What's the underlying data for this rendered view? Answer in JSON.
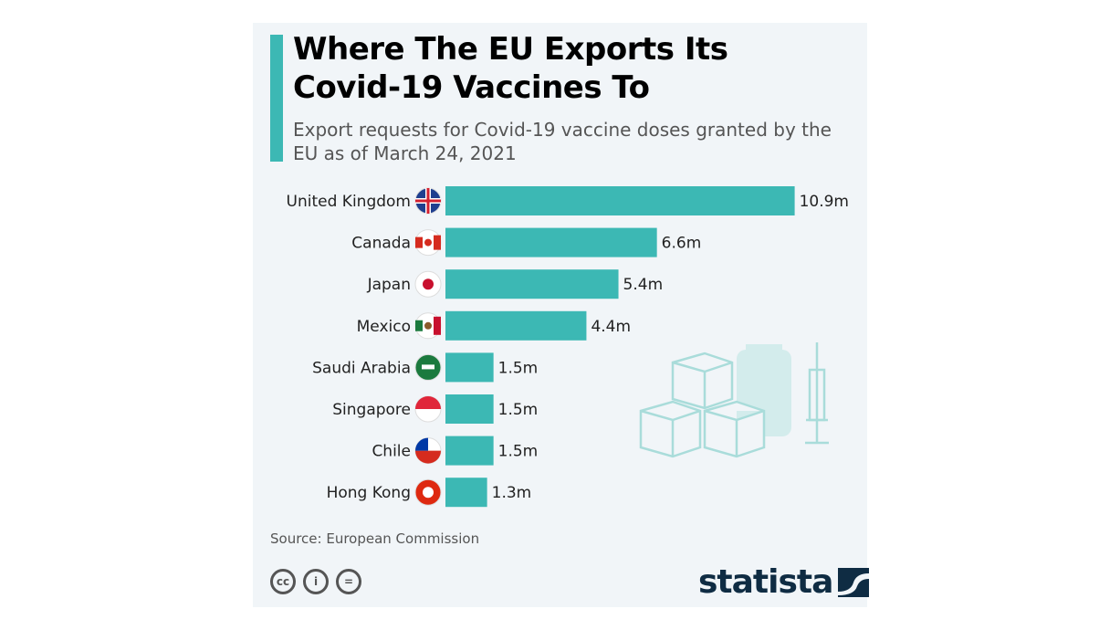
{
  "title": "Where The EU Exports Its Covid-19 Vaccines To",
  "subtitle": "Export requests for Covid-19 vaccine doses granted by the EU as of March 24, 2021",
  "source": "Source: European Commission",
  "brand": "statista",
  "license_icons": [
    "cc-icon",
    "attribution-icon",
    "no-derivatives-icon"
  ],
  "colors": {
    "bar": "#3cb8b4",
    "background": "#f1f5f8"
  },
  "chart_data": {
    "type": "bar",
    "orientation": "horizontal",
    "title": "Where The EU Exports Its Covid-19 Vaccines To",
    "unit": "million doses",
    "categories": [
      "United Kingdom",
      "Canada",
      "Japan",
      "Mexico",
      "Saudi Arabia",
      "Singapore",
      "Chile",
      "Hong Kong"
    ],
    "values": [
      10.9,
      6.6,
      5.4,
      4.4,
      1.5,
      1.5,
      1.5,
      1.3
    ],
    "labels": [
      "10.9m",
      "6.6m",
      "5.4m",
      "4.4m",
      "1.5m",
      "1.5m",
      "1.5m",
      "1.3m"
    ],
    "flags": [
      "uk-flag-icon",
      "canada-flag-icon",
      "japan-flag-icon",
      "mexico-flag-icon",
      "saudi-arabia-flag-icon",
      "singapore-flag-icon",
      "chile-flag-icon",
      "hong-kong-flag-icon"
    ]
  }
}
